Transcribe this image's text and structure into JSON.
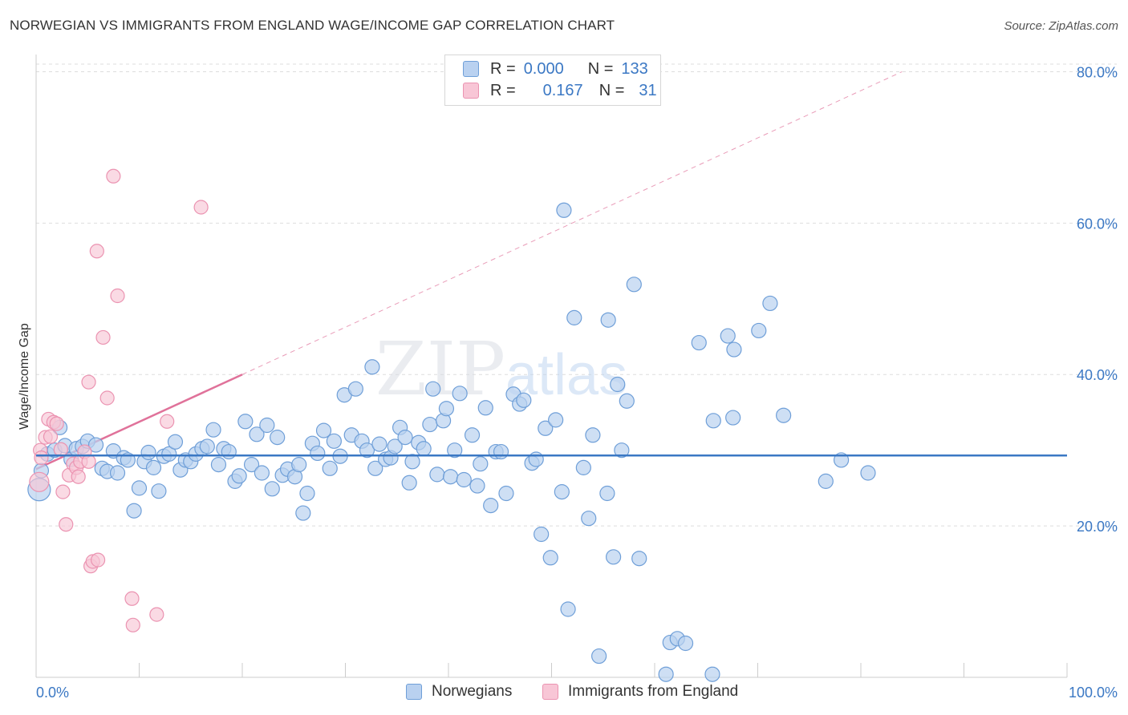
{
  "title": "NORWEGIAN VS IMMIGRANTS FROM ENGLAND WAGE/INCOME GAP CORRELATION CHART",
  "source": "Source: ZipAtlas.com",
  "watermark": {
    "zip": "ZIP",
    "atlas": "atlas"
  },
  "colors": {
    "blue": "#3b78c4",
    "blue_fill": "#b9d1f0",
    "blue_stroke": "#6f9fd8",
    "pink": "#e0729a",
    "pink_fill": "#f8c6d6",
    "pink_stroke": "#eb93b1",
    "grid": "#dddddd",
    "axis": "#cccccc"
  },
  "legend_stats": [
    {
      "r_label": "R =",
      "r_value": "0.000",
      "n_label": "N =",
      "n_value": "133"
    },
    {
      "r_label": "R =",
      "r_value": "0.167",
      "n_label": "N =",
      "n_value": "31"
    }
  ],
  "chart_data": {
    "type": "scatter",
    "title": "NORWEGIAN VS IMMIGRANTS FROM ENGLAND WAGE/INCOME GAP CORRELATION CHART",
    "xlabel": "",
    "ylabel": "Wage/Income Gap",
    "xlim": [
      0,
      100
    ],
    "ylim": [
      0,
      81
    ],
    "x_tick_labels": [
      "0.0%",
      "100.0%"
    ],
    "y_ticks": [
      20,
      40,
      60,
      80
    ],
    "y_tick_labels": [
      "20.0%",
      "40.0%",
      "60.0%",
      "80.0%"
    ],
    "grid": true,
    "legend": [
      "Norwegians",
      "Immigrants from England"
    ],
    "series": [
      {
        "name": "Norwegians",
        "color": "#3b78c4",
        "trend": {
          "x": [
            0,
            100
          ],
          "y": [
            29.3,
            29.3
          ]
        },
        "points": [
          [
            0.3,
            24.8
          ],
          [
            0.5,
            27.3
          ],
          [
            1.1,
            29.5
          ],
          [
            1.8,
            30.0
          ],
          [
            2.3,
            33.0
          ],
          [
            2.8,
            30.6
          ],
          [
            3.4,
            28.8
          ],
          [
            3.9,
            30.2
          ],
          [
            4.5,
            30.5
          ],
          [
            5.0,
            31.2
          ],
          [
            5.8,
            30.7
          ],
          [
            6.4,
            27.6
          ],
          [
            6.9,
            27.2
          ],
          [
            7.5,
            29.9
          ],
          [
            7.9,
            27.0
          ],
          [
            8.5,
            29.0
          ],
          [
            8.9,
            28.7
          ],
          [
            9.5,
            22.0
          ],
          [
            10.0,
            25.0
          ],
          [
            10.5,
            28.5
          ],
          [
            10.9,
            29.7
          ],
          [
            11.4,
            27.7
          ],
          [
            11.9,
            24.6
          ],
          [
            12.4,
            29.2
          ],
          [
            12.9,
            29.5
          ],
          [
            13.5,
            31.1
          ],
          [
            14.0,
            27.4
          ],
          [
            14.5,
            28.7
          ],
          [
            15.0,
            28.5
          ],
          [
            15.5,
            29.5
          ],
          [
            16.1,
            30.2
          ],
          [
            16.6,
            30.5
          ],
          [
            17.2,
            32.7
          ],
          [
            17.7,
            28.1
          ],
          [
            18.2,
            30.2
          ],
          [
            18.7,
            29.8
          ],
          [
            19.3,
            25.9
          ],
          [
            19.7,
            26.6
          ],
          [
            20.3,
            33.8
          ],
          [
            20.9,
            28.1
          ],
          [
            21.4,
            32.1
          ],
          [
            21.9,
            27.0
          ],
          [
            22.4,
            33.3
          ],
          [
            22.9,
            24.9
          ],
          [
            23.4,
            31.7
          ],
          [
            23.9,
            26.7
          ],
          [
            24.4,
            27.5
          ],
          [
            25.1,
            26.5
          ],
          [
            25.5,
            28.1
          ],
          [
            25.9,
            21.7
          ],
          [
            26.3,
            24.3
          ],
          [
            26.8,
            30.9
          ],
          [
            27.3,
            29.6
          ],
          [
            27.9,
            32.6
          ],
          [
            28.5,
            27.6
          ],
          [
            28.9,
            31.2
          ],
          [
            29.5,
            29.2
          ],
          [
            29.9,
            37.3
          ],
          [
            30.6,
            32.0
          ],
          [
            31.0,
            38.1
          ],
          [
            31.6,
            31.2
          ],
          [
            32.1,
            30.0
          ],
          [
            32.6,
            41.0
          ],
          [
            32.9,
            27.6
          ],
          [
            33.3,
            30.8
          ],
          [
            33.9,
            28.8
          ],
          [
            34.4,
            29.0
          ],
          [
            34.8,
            30.5
          ],
          [
            35.3,
            33.0
          ],
          [
            35.8,
            31.7
          ],
          [
            36.2,
            25.7
          ],
          [
            36.5,
            28.5
          ],
          [
            37.1,
            31.0
          ],
          [
            37.6,
            30.2
          ],
          [
            38.2,
            33.4
          ],
          [
            38.5,
            38.1
          ],
          [
            38.9,
            26.8
          ],
          [
            39.5,
            33.9
          ],
          [
            39.8,
            35.5
          ],
          [
            40.2,
            26.5
          ],
          [
            40.6,
            30.0
          ],
          [
            41.1,
            37.5
          ],
          [
            41.5,
            26.1
          ],
          [
            42.3,
            32.0
          ],
          [
            42.8,
            25.3
          ],
          [
            43.1,
            28.2
          ],
          [
            43.6,
            35.6
          ],
          [
            44.1,
            22.7
          ],
          [
            44.6,
            29.8
          ],
          [
            45.1,
            29.8
          ],
          [
            45.6,
            24.3
          ],
          [
            46.3,
            37.4
          ],
          [
            46.9,
            36.1
          ],
          [
            47.3,
            36.6
          ],
          [
            48.1,
            28.3
          ],
          [
            48.5,
            28.8
          ],
          [
            49.0,
            18.9
          ],
          [
            49.4,
            32.9
          ],
          [
            49.9,
            15.8
          ],
          [
            50.4,
            34.0
          ],
          [
            51.0,
            24.5
          ],
          [
            51.2,
            61.7
          ],
          [
            51.6,
            9.0
          ],
          [
            52.2,
            47.5
          ],
          [
            53.1,
            27.7
          ],
          [
            53.6,
            21.0
          ],
          [
            54.0,
            32.0
          ],
          [
            54.6,
            2.8
          ],
          [
            55.4,
            24.3
          ],
          [
            55.5,
            47.2
          ],
          [
            56.0,
            15.9
          ],
          [
            56.4,
            38.7
          ],
          [
            56.8,
            30.0
          ],
          [
            57.3,
            36.5
          ],
          [
            58.0,
            51.9
          ],
          [
            58.5,
            15.7
          ],
          [
            61.1,
            0.4
          ],
          [
            61.5,
            4.6
          ],
          [
            62.2,
            5.1
          ],
          [
            63.0,
            4.5
          ],
          [
            64.3,
            44.2
          ],
          [
            65.6,
            0.4
          ],
          [
            65.7,
            33.9
          ],
          [
            67.1,
            45.1
          ],
          [
            67.6,
            34.3
          ],
          [
            67.7,
            43.3
          ],
          [
            70.1,
            45.8
          ],
          [
            71.2,
            49.4
          ],
          [
            72.5,
            34.6
          ],
          [
            76.6,
            25.9
          ],
          [
            78.1,
            28.7
          ],
          [
            80.7,
            27.0
          ]
        ],
        "sizes_note": "first point larger"
      },
      {
        "name": "Immigrants from England",
        "color": "#e0729a",
        "trend": {
          "x": [
            0,
            20
          ],
          "y": [
            27.5,
            40.0
          ],
          "extended_to": [
            84,
            80
          ]
        },
        "points": [
          [
            0.3,
            25.8
          ],
          [
            0.4,
            30.0
          ],
          [
            0.5,
            29.0
          ],
          [
            0.9,
            31.7
          ],
          [
            1.2,
            34.1
          ],
          [
            1.4,
            31.8
          ],
          [
            1.7,
            33.7
          ],
          [
            2.0,
            33.5
          ],
          [
            2.4,
            30.1
          ],
          [
            2.6,
            24.5
          ],
          [
            2.9,
            20.2
          ],
          [
            3.2,
            26.7
          ],
          [
            3.6,
            28.2
          ],
          [
            3.9,
            27.7
          ],
          [
            4.1,
            26.5
          ],
          [
            4.3,
            28.5
          ],
          [
            4.7,
            29.8
          ],
          [
            5.1,
            28.5
          ],
          [
            5.1,
            39.0
          ],
          [
            5.3,
            14.7
          ],
          [
            5.5,
            15.3
          ],
          [
            6.0,
            15.5
          ],
          [
            5.9,
            56.3
          ],
          [
            6.5,
            44.9
          ],
          [
            6.9,
            36.9
          ],
          [
            7.5,
            66.2
          ],
          [
            7.9,
            50.4
          ],
          [
            9.3,
            10.4
          ],
          [
            9.4,
            6.9
          ],
          [
            11.7,
            8.3
          ],
          [
            12.7,
            33.8
          ],
          [
            16.0,
            62.1
          ]
        ]
      }
    ]
  }
}
